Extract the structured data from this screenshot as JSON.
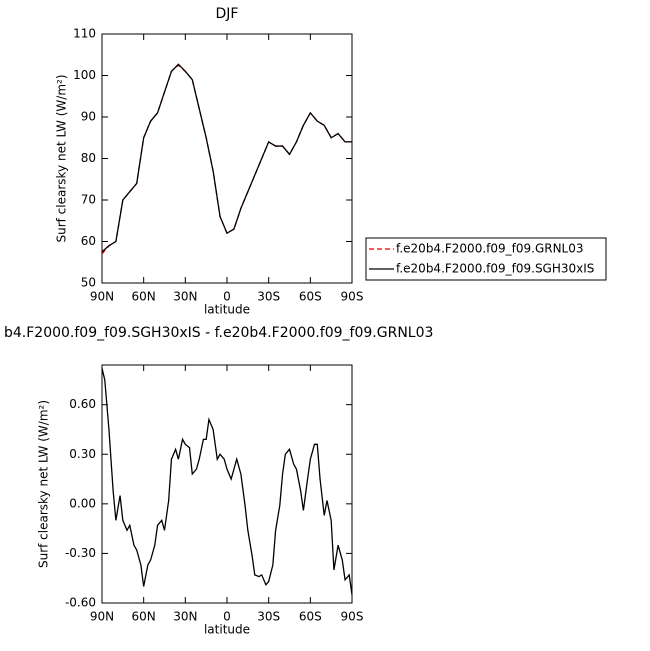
{
  "chart_data": [
    {
      "type": "line",
      "title": "DJF",
      "xlabel": "latitude",
      "ylabel": "Surf clearsky net LW (W/m²)",
      "x": [
        90,
        85,
        80,
        75,
        70,
        65,
        60,
        55,
        50,
        45,
        40,
        35,
        30,
        25,
        20,
        15,
        10,
        5,
        0,
        -5,
        -10,
        -15,
        -20,
        -25,
        -30,
        -35,
        -40,
        -45,
        -50,
        -55,
        -60,
        -65,
        -70,
        -75,
        -80,
        -85,
        -90
      ],
      "series": [
        {
          "name": "f.e20b4.F2000.f09_f09.GRNL03",
          "color": "#e00000",
          "line_style": "dashed",
          "values": [
            57,
            59,
            60,
            70,
            72,
            74,
            85,
            89,
            91,
            96,
            101,
            102.5,
            101,
            99,
            92,
            85,
            77,
            66,
            62,
            63,
            68,
            72,
            76,
            80,
            84,
            83,
            83,
            81,
            84,
            88,
            91,
            89,
            88,
            85,
            86,
            84,
            84
          ]
        },
        {
          "name": "f.e20b4.F2000.f09_f09.SGH30xIS",
          "color": "#000000",
          "line_style": "solid",
          "values": [
            57.5,
            59,
            60,
            70,
            72,
            74,
            85,
            89,
            91,
            96,
            101,
            102.7,
            101,
            99,
            92,
            85,
            77,
            66,
            62,
            63,
            68,
            72,
            76,
            80,
            84,
            83,
            83,
            81,
            84,
            88,
            91,
            89,
            88,
            85,
            86,
            84,
            84
          ]
        }
      ],
      "xlim": [
        90,
        -90
      ],
      "xticks": [
        {
          "value": 90,
          "label": "90N"
        },
        {
          "value": 60,
          "label": "60N"
        },
        {
          "value": 30,
          "label": "30N"
        },
        0,
        {
          "value": -30,
          "label": "30S"
        },
        {
          "value": -60,
          "label": "60S"
        },
        {
          "value": -90,
          "label": "90S"
        }
      ],
      "ylim": [
        50,
        110
      ],
      "yticks": [
        50,
        60,
        70,
        80,
        90,
        100,
        110
      ],
      "legend": "outside right"
    },
    {
      "type": "line",
      "title": "b4.F2000.f09_f09.SGH30xIS - f.e20b4.F2000.f09_f09.GRNL03",
      "xlabel": "latitude",
      "ylabel": "Surf clearsky net LW (W/m²)",
      "x": [
        90,
        88,
        85,
        82,
        80,
        77,
        75,
        72,
        70,
        67,
        65,
        62,
        60,
        57,
        55,
        52,
        50,
        47,
        45,
        42,
        40,
        37,
        35,
        32,
        30,
        27,
        25,
        22,
        20,
        17,
        15,
        13,
        10,
        7,
        5,
        2,
        0,
        -3,
        -5,
        -7,
        -10,
        -13,
        -15,
        -18,
        -20,
        -23,
        -25,
        -28,
        -30,
        -33,
        -35,
        -38,
        -40,
        -42,
        -45,
        -48,
        -50,
        -53,
        -55,
        -58,
        -60,
        -63,
        -65,
        -67,
        -70,
        -72,
        -75,
        -77,
        -80,
        -83,
        -85,
        -88,
        -90
      ],
      "series": [
        {
          "color": "#000000",
          "line_style": "solid",
          "values": [
            0.82,
            0.75,
            0.45,
            0.08,
            -0.1,
            0.05,
            -0.1,
            -0.16,
            -0.13,
            -0.25,
            -0.28,
            -0.37,
            -0.5,
            -0.37,
            -0.34,
            -0.25,
            -0.13,
            -0.1,
            -0.16,
            0.02,
            0.27,
            0.33,
            0.27,
            0.39,
            0.36,
            0.34,
            0.18,
            0.21,
            0.27,
            0.39,
            0.39,
            0.51,
            0.45,
            0.27,
            0.3,
            0.27,
            0.21,
            0.15,
            0.21,
            0.27,
            0.18,
            -0.01,
            -0.16,
            -0.31,
            -0.43,
            -0.44,
            -0.43,
            -0.49,
            -0.47,
            -0.37,
            -0.16,
            -0.01,
            0.18,
            0.3,
            0.33,
            0.24,
            0.21,
            0.08,
            -0.04,
            0.15,
            0.27,
            0.36,
            0.36,
            0.15,
            -0.07,
            0.02,
            -0.1,
            -0.4,
            -0.25,
            -0.34,
            -0.46,
            -0.43,
            -0.55
          ]
        }
      ],
      "xlim": [
        90,
        -90
      ],
      "xticks": [
        {
          "value": 90,
          "label": "90N"
        },
        {
          "value": 60,
          "label": "60N"
        },
        {
          "value": 30,
          "label": "30N"
        },
        0,
        {
          "value": -30,
          "label": "30S"
        },
        {
          "value": -60,
          "label": "60S"
        },
        {
          "value": -90,
          "label": "90S"
        }
      ],
      "ylim": [
        -0.6,
        0.84
      ],
      "yticks": [
        {
          "value": -0.6,
          "label": "-0.60"
        },
        {
          "value": -0.3,
          "label": "-0.30"
        },
        {
          "value": 0,
          "label": "0.00"
        },
        {
          "value": 0.3,
          "label": "0.30"
        },
        {
          "value": 0.6,
          "label": "0.60"
        }
      ]
    }
  ]
}
